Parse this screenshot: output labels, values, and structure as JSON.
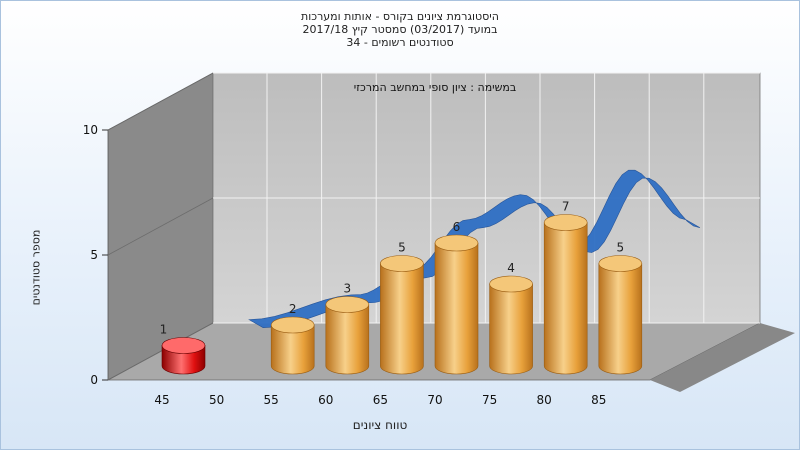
{
  "chart_data": {
    "type": "bar",
    "title_lines": [
      "היסטוגרמת ציונים בקורס - אותות ומערכות",
      "במועד  (03/2017)  סמסטר קיץ  2017/18",
      "סטודנטים רשומים - 34"
    ],
    "subtitle": "במשימה : ציון סופי במחשב המרכזי",
    "xlabel": "טווח ציונים",
    "ylabel": "מספר סטודנטים",
    "x_ticks": [
      "45",
      "50",
      "55",
      "60",
      "65",
      "70",
      "75",
      "80",
      "85"
    ],
    "y_ticks": [
      "0",
      "5",
      "10"
    ],
    "ylim": [
      0,
      10
    ],
    "categories": [
      "45",
      "55",
      "60",
      "65",
      "70",
      "75",
      "80",
      "85"
    ],
    "values": [
      1,
      2,
      3,
      5,
      6,
      4,
      7,
      5
    ],
    "highlight_index": 0,
    "trend_type": "ribbon",
    "colors": {
      "bar": "#e8a13b",
      "bar_highlight": "#e01010",
      "trend": "#2f6fc4",
      "back_wall": "#c8c8c8",
      "side_wall": "#8a8a8a",
      "floor": "#a9a9a9"
    }
  }
}
